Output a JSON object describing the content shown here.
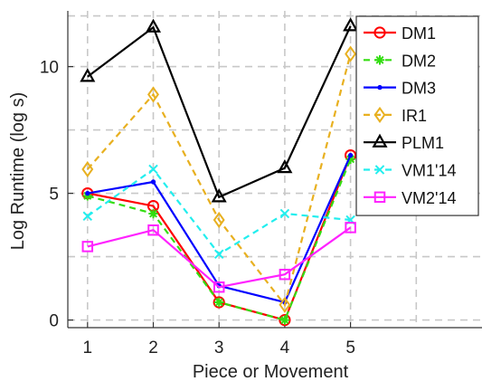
{
  "chart_data": {
    "type": "line",
    "title": "",
    "xlabel": "Piece or Movement",
    "ylabel": "Log Runtime (log s)",
    "xlim": [
      0.7,
      7.0
    ],
    "ylim": [
      -0.3,
      12.2
    ],
    "x": [
      1,
      2,
      3,
      4,
      5
    ],
    "x_tick_labels": [
      "1",
      "2",
      "3",
      "4",
      "5"
    ],
    "y_ticks": [
      0,
      5,
      10
    ],
    "y_tick_labels": [
      "0",
      "5",
      "10"
    ],
    "grid": true,
    "grid_style": "dashed",
    "legend_position": "top-right",
    "series": [
      {
        "name": "DM1",
        "values": [
          5.0,
          4.5,
          0.7,
          0.0,
          6.5
        ],
        "color": "#ff0000",
        "marker": "circle",
        "dash": "solid"
      },
      {
        "name": "DM2",
        "values": [
          4.9,
          4.2,
          0.7,
          0.0,
          6.35
        ],
        "color": "#33dd11",
        "marker": "asterisk",
        "dash": "dashed"
      },
      {
        "name": "DM3",
        "values": [
          5.0,
          5.45,
          1.35,
          0.7,
          6.5
        ],
        "color": "#0000ff",
        "marker": "dot",
        "dash": "solid"
      },
      {
        "name": "IR1",
        "values": [
          5.95,
          8.9,
          3.95,
          0.6,
          10.5
        ],
        "color": "#e8b020",
        "marker": "diamond",
        "dash": "dashed"
      },
      {
        "name": "PLM1",
        "values": [
          9.6,
          11.55,
          4.85,
          6.0,
          11.6
        ],
        "color": "#000000",
        "marker": "triangle",
        "dash": "solid"
      },
      {
        "name": "VM1'14",
        "values": [
          4.1,
          5.95,
          2.6,
          4.2,
          3.95
        ],
        "color": "#22eeee",
        "marker": "x",
        "dash": "dashed"
      },
      {
        "name": "VM2'14",
        "values": [
          2.9,
          3.55,
          1.3,
          1.8,
          3.65
        ],
        "color": "#ff22ff",
        "marker": "square",
        "dash": "solid"
      }
    ]
  }
}
